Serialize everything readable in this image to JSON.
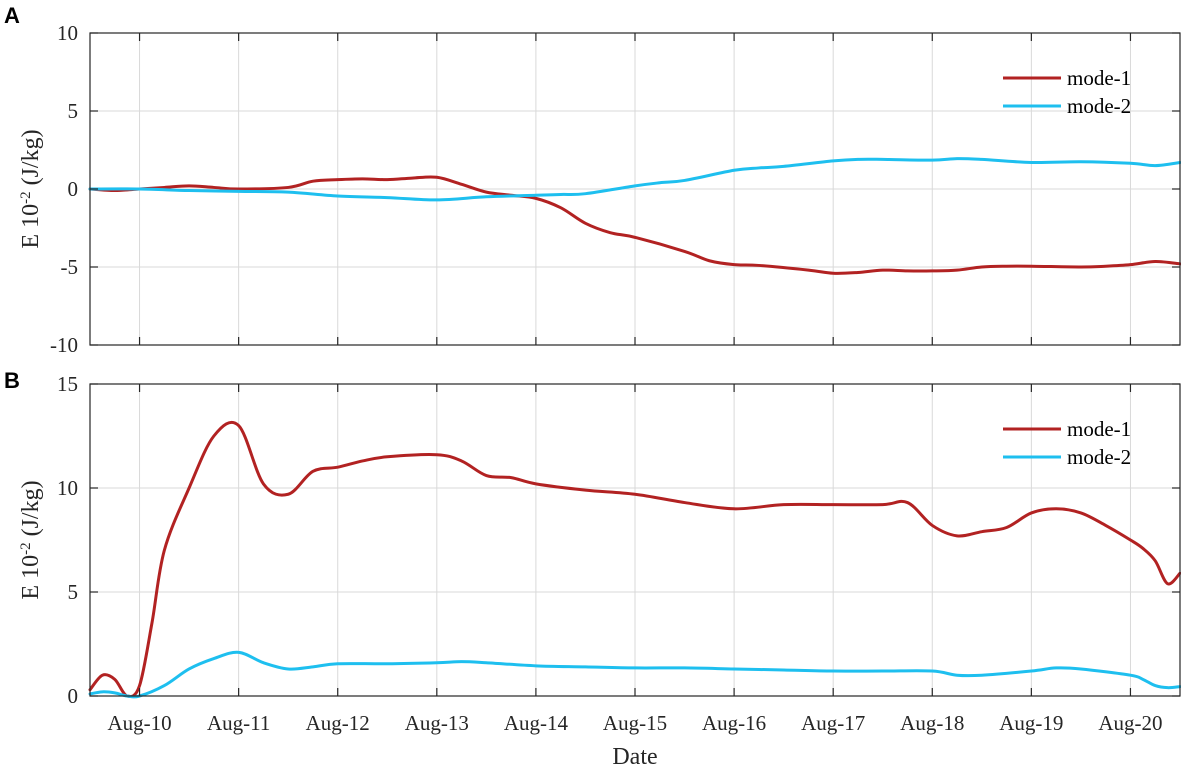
{
  "chart_data": [
    {
      "panel": "A",
      "type": "line",
      "ylabel": "E  10",
      "ylabel_sup": "-2",
      "ylabel_unit": " (J/kg)",
      "xlabel": "",
      "xlim": [
        "Aug-09 12:00",
        "Aug-20 12:00"
      ],
      "ylim": [
        -10,
        10
      ],
      "yticks": [
        -10,
        -5,
        0,
        5,
        10
      ],
      "ytick_labels": [
        "-10",
        "-5",
        "0",
        "5",
        "10"
      ],
      "xticks": [
        "Aug-10",
        "Aug-11",
        "Aug-12",
        "Aug-13",
        "Aug-14",
        "Aug-15",
        "Aug-16",
        "Aug-17",
        "Aug-18",
        "Aug-19",
        "Aug-20"
      ],
      "show_xtick_labels": false,
      "grid": true,
      "legend": "top-right",
      "series": [
        {
          "name": "mode-1",
          "color": "#B22222",
          "x": [
            "Aug-09 12:00",
            "Aug-09 18:00",
            "Aug-10 00:00",
            "Aug-10 06:00",
            "Aug-10 12:00",
            "Aug-10 18:00",
            "Aug-11 00:00",
            "Aug-11 12:00",
            "Aug-11 18:00",
            "Aug-12 00:00",
            "Aug-12 06:00",
            "Aug-12 12:00",
            "Aug-12 18:00",
            "Aug-13 00:00",
            "Aug-13 06:00",
            "Aug-13 12:00",
            "Aug-13 18:00",
            "Aug-14 00:00",
            "Aug-14 06:00",
            "Aug-14 12:00",
            "Aug-14 18:00",
            "Aug-15 00:00",
            "Aug-15 12:00",
            "Aug-15 18:00",
            "Aug-16 00:00",
            "Aug-16 06:00",
            "Aug-16 18:00",
            "Aug-17 00:00",
            "Aug-17 06:00",
            "Aug-17 12:00",
            "Aug-17 18:00",
            "Aug-18 00:00",
            "Aug-18 06:00",
            "Aug-18 12:00",
            "Aug-18 18:00",
            "Aug-19 00:00",
            "Aug-19 12:00",
            "Aug-19 18:00",
            "Aug-20 00:00",
            "Aug-20 06:00",
            "Aug-20 12:00"
          ],
          "values": [
            0.0,
            -0.1,
            0.0,
            0.1,
            0.2,
            0.1,
            0.0,
            0.1,
            0.5,
            0.6,
            0.65,
            0.6,
            0.7,
            0.75,
            0.3,
            -0.2,
            -0.4,
            -0.6,
            -1.2,
            -2.2,
            -2.8,
            -3.1,
            -4.0,
            -4.6,
            -4.85,
            -4.9,
            -5.2,
            -5.4,
            -5.35,
            -5.2,
            -5.25,
            -5.25,
            -5.2,
            -5.0,
            -4.95,
            -4.95,
            -5.0,
            -4.95,
            -4.85,
            -4.65,
            -4.8
          ]
        },
        {
          "name": "mode-2",
          "color": "#1EBFEF",
          "x": [
            "Aug-09 12:00",
            "Aug-10 00:00",
            "Aug-10 12:00",
            "Aug-11 00:00",
            "Aug-11 12:00",
            "Aug-12 00:00",
            "Aug-12 12:00",
            "Aug-13 00:00",
            "Aug-13 12:00",
            "Aug-14 00:00",
            "Aug-14 06:00",
            "Aug-14 12:00",
            "Aug-15 00:00",
            "Aug-15 06:00",
            "Aug-15 12:00",
            "Aug-16 00:00",
            "Aug-16 06:00",
            "Aug-16 12:00",
            "Aug-17 00:00",
            "Aug-17 06:00",
            "Aug-17 12:00",
            "Aug-18 00:00",
            "Aug-18 06:00",
            "Aug-18 12:00",
            "Aug-19 00:00",
            "Aug-19 12:00",
            "Aug-20 00:00",
            "Aug-20 06:00",
            "Aug-20 12:00"
          ],
          "values": [
            0.0,
            0.0,
            -0.1,
            -0.15,
            -0.2,
            -0.45,
            -0.55,
            -0.7,
            -0.5,
            -0.4,
            -0.35,
            -0.3,
            0.2,
            0.4,
            0.55,
            1.2,
            1.35,
            1.45,
            1.8,
            1.9,
            1.9,
            1.85,
            1.95,
            1.9,
            1.7,
            1.75,
            1.65,
            1.5,
            1.7
          ]
        }
      ]
    },
    {
      "panel": "B",
      "type": "line",
      "ylabel": "E  10",
      "ylabel_sup": "-2",
      "ylabel_unit": " (J/kg)",
      "xlabel": "Date",
      "xlim": [
        "Aug-09 12:00",
        "Aug-20 12:00"
      ],
      "ylim": [
        0,
        15
      ],
      "yticks": [
        0,
        5,
        10,
        15
      ],
      "ytick_labels": [
        "0",
        "5",
        "10",
        "15"
      ],
      "xticks": [
        "Aug-10",
        "Aug-11",
        "Aug-12",
        "Aug-13",
        "Aug-14",
        "Aug-15",
        "Aug-16",
        "Aug-17",
        "Aug-18",
        "Aug-19",
        "Aug-20"
      ],
      "show_xtick_labels": true,
      "grid": true,
      "legend": "top-right",
      "series": [
        {
          "name": "mode-1",
          "color": "#B22222",
          "x": [
            "Aug-09 12:00",
            "Aug-09 15:00",
            "Aug-09 18:00",
            "Aug-09 21:00",
            "Aug-10 00:00",
            "Aug-10 03:00",
            "Aug-10 06:00",
            "Aug-10 12:00",
            "Aug-10 18:00",
            "Aug-11 00:00",
            "Aug-11 06:00",
            "Aug-11 12:00",
            "Aug-11 18:00",
            "Aug-12 00:00",
            "Aug-12 06:00",
            "Aug-12 12:00",
            "Aug-13 00:00",
            "Aug-13 06:00",
            "Aug-13 12:00",
            "Aug-13 18:00",
            "Aug-14 00:00",
            "Aug-14 12:00",
            "Aug-15 00:00",
            "Aug-15 12:00",
            "Aug-16 00:00",
            "Aug-16 12:00",
            "Aug-17 00:00",
            "Aug-17 12:00",
            "Aug-17 18:00",
            "Aug-18 00:00",
            "Aug-18 06:00",
            "Aug-18 12:00",
            "Aug-18 18:00",
            "Aug-19 00:00",
            "Aug-19 06:00",
            "Aug-19 12:00",
            "Aug-19 18:00",
            "Aug-20 00:00",
            "Aug-20 03:00",
            "Aug-20 06:00",
            "Aug-20 09:00",
            "Aug-20 12:00"
          ],
          "values": [
            0.3,
            1.0,
            0.8,
            0.0,
            0.5,
            3.5,
            7.0,
            10.0,
            12.5,
            13.0,
            10.2,
            9.7,
            10.8,
            11.0,
            11.3,
            11.5,
            11.6,
            11.3,
            10.6,
            10.5,
            10.2,
            9.9,
            9.7,
            9.3,
            9.0,
            9.2,
            9.2,
            9.2,
            9.3,
            8.2,
            7.7,
            7.9,
            8.1,
            8.8,
            9.0,
            8.8,
            8.2,
            7.5,
            7.1,
            6.5,
            5.4,
            5.9
          ]
        },
        {
          "name": "mode-2",
          "color": "#1EBFEF",
          "x": [
            "Aug-09 12:00",
            "Aug-09 15:00",
            "Aug-09 18:00",
            "Aug-09 21:00",
            "Aug-10 00:00",
            "Aug-10 06:00",
            "Aug-10 12:00",
            "Aug-10 18:00",
            "Aug-11 00:00",
            "Aug-11 06:00",
            "Aug-11 12:00",
            "Aug-11 18:00",
            "Aug-12 00:00",
            "Aug-12 12:00",
            "Aug-13 00:00",
            "Aug-13 06:00",
            "Aug-13 12:00",
            "Aug-14 00:00",
            "Aug-14 12:00",
            "Aug-15 00:00",
            "Aug-15 12:00",
            "Aug-16 00:00",
            "Aug-16 12:00",
            "Aug-17 00:00",
            "Aug-17 12:00",
            "Aug-18 00:00",
            "Aug-18 06:00",
            "Aug-18 12:00",
            "Aug-19 00:00",
            "Aug-19 06:00",
            "Aug-19 12:00",
            "Aug-20 00:00",
            "Aug-20 03:00",
            "Aug-20 06:00",
            "Aug-20 09:00",
            "Aug-20 12:00"
          ],
          "values": [
            0.1,
            0.2,
            0.15,
            0.0,
            0.0,
            0.5,
            1.3,
            1.8,
            2.1,
            1.6,
            1.3,
            1.4,
            1.55,
            1.55,
            1.6,
            1.65,
            1.6,
            1.45,
            1.4,
            1.35,
            1.35,
            1.3,
            1.25,
            1.2,
            1.2,
            1.2,
            1.0,
            1.0,
            1.2,
            1.35,
            1.3,
            1.0,
            0.8,
            0.5,
            0.4,
            0.45
          ]
        }
      ]
    }
  ]
}
